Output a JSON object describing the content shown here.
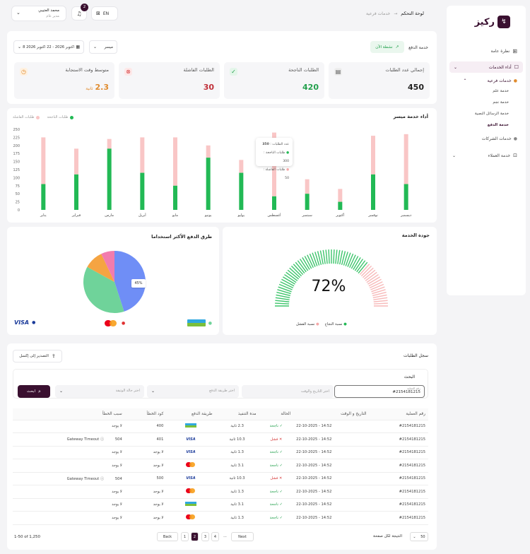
{
  "header": {
    "brand": "ركيز",
    "breadcrumb_current": "لوحة التحكم",
    "breadcrumb_sub": "خدمات فرعية",
    "lang": "EN",
    "notif_count": "2",
    "user_name": "محمد العتيبي",
    "user_role": "مدير عام"
  },
  "sidebar": {
    "items": [
      {
        "label": "نظرة عامة"
      },
      {
        "label": "أداء الخدمات"
      },
      {
        "label": "خدمات فرعية"
      },
      {
        "label": "خدمة علم"
      },
      {
        "label": "خدمة نجم"
      },
      {
        "label": "خدمة الرسائل النصية"
      },
      {
        "label": "خدمة الدفع"
      },
      {
        "label": "خدمات الشركات"
      },
      {
        "label": "خدمة العملاء"
      }
    ]
  },
  "filters": {
    "service_label": "خدمة الدفع",
    "status_badge": "نشطة الآن",
    "provider": "ميسر",
    "date_range": "8 اكتوبر 2026 - 22 اكتوبر 2026"
  },
  "stats": [
    {
      "label": "إجمالي عدد الطلبات",
      "value": "450"
    },
    {
      "label": "الطلبات الناجحة",
      "value": "420"
    },
    {
      "label": "الطلبات الفاشلة",
      "value": "30"
    },
    {
      "label": "متوسط وقت الاستجابة",
      "value": "2.3",
      "unit": "ثانية"
    }
  ],
  "bar_chart": {
    "title": "أداء خدمة ميسر",
    "legend_success": "طلبات الناجحة",
    "legend_failed": "طلبات الفاشلة",
    "tooltip": {
      "total_label": "عدد الطلبات",
      "total": "350",
      "success_label": "طلبات الناجحة",
      "success": "300",
      "failed_label": "طلبات الفاشلة",
      "failed": "50"
    }
  },
  "chart_data": [
    {
      "type": "bar",
      "title": "أداء خدمة ميسر",
      "categories": [
        "يناير",
        "فبراير",
        "مارس",
        "أبريل",
        "مايو",
        "يونيو",
        "يوليو",
        "أغسطس",
        "سبتمبر",
        "أكتوبر",
        "نوفمبر",
        "ديسمبر"
      ],
      "yticks": [
        0,
        25,
        50,
        75,
        100,
        125,
        150,
        175,
        200,
        225,
        250
      ],
      "ylim": [
        0,
        250
      ],
      "series": [
        {
          "name": "طلبات الناجحة",
          "values": [
            80,
            110,
            190,
            115,
            75,
            162,
            115,
            42,
            50,
            25,
            110,
            80
          ],
          "color": "#22b955"
        },
        {
          "name": "طلبات الفاشلة",
          "values": [
            145,
            80,
            30,
            110,
            150,
            38,
            40,
            198,
            45,
            40,
            120,
            155
          ],
          "color": "#f9c6c6"
        }
      ]
    },
    {
      "type": "pie",
      "title": "طرق الدفع الأكثر استخداما",
      "values": [
        45,
        38,
        10,
        7
      ],
      "colors": [
        "#6f8ef6",
        "#6fd39a",
        "#f5a442",
        "#f27cae"
      ],
      "label": "45%"
    },
    {
      "type": "gauge",
      "title": "جودة الخدمة",
      "value": 72,
      "label": "72%",
      "legend": [
        "نسبة النجاح",
        "نسبة الفشل"
      ]
    }
  ],
  "payment_legend": [
    "mada",
    "MasterCard",
    "VISA"
  ],
  "log": {
    "title": "سجل الطلبات",
    "export": "التصدير إلى إكسل",
    "search_title": "البحث",
    "search_label": "رقم العملية",
    "search_value": "#2154181215",
    "date_ph": "اختر التاريخ والوقت",
    "method_ph": "اختر طريقة الدفع",
    "status_ph": "اختر حالة الوثيقة",
    "search_btn": "ابحث",
    "columns": [
      "رقم العملية",
      "التاريخ و الوقت",
      "الحالة",
      "مدة التنفيذ",
      "طريقة الدفع",
      "كود الخطأ",
      "سبب الخطأ"
    ],
    "rows": [
      {
        "id": "#2154181215",
        "dt": "22-10-2025  -  14:52",
        "status": "ناجحة",
        "ok": true,
        "dur": "2.3 ثانية",
        "pay": "mada",
        "code": "400",
        "reason": "لا يوجد"
      },
      {
        "id": "#2154181215",
        "dt": "22-10-2025  -  14:52",
        "status": "فشل",
        "ok": false,
        "dur": "10.3 ثانية",
        "pay": "VISA",
        "code": "401",
        "reason": "504 Gateway Timeout"
      },
      {
        "id": "#2154181215",
        "dt": "22-10-2025  -  14:52",
        "status": "ناجحة",
        "ok": true,
        "dur": "1.3 ثانية",
        "pay": "VISA",
        "code": "لا يوجد",
        "reason": "لا يوجد"
      },
      {
        "id": "#2154181215",
        "dt": "22-10-2025  -  14:52",
        "status": "ناجحة",
        "ok": true,
        "dur": "3.1 ثانية",
        "pay": "MasterCard",
        "code": "لا يوجد",
        "reason": "لا يوجد"
      },
      {
        "id": "#2154181215",
        "dt": "22-10-2025  -  14:52",
        "status": "فشل",
        "ok": false,
        "dur": "10.3 ثانية",
        "pay": "VISA",
        "code": "500",
        "reason": "504 Gateway Timeout"
      },
      {
        "id": "#2154181215",
        "dt": "22-10-2025  -  14:52",
        "status": "ناجحة",
        "ok": true,
        "dur": "1.3 ثانية",
        "pay": "MasterCard",
        "code": "لا يوجد",
        "reason": "لا يوجد"
      },
      {
        "id": "#2154181215",
        "dt": "22-10-2025  -  14:52",
        "status": "ناجحة",
        "ok": true,
        "dur": "3.1 ثانية",
        "pay": "mada",
        "code": "لا يوجد",
        "reason": "لا يوجد"
      },
      {
        "id": "#2154181215",
        "dt": "22-10-2025  -  14:52",
        "status": "ناجحة",
        "ok": true,
        "dur": "1.3 ثانية",
        "pay": "MasterCard",
        "code": "لا يوجد",
        "reason": "لا يوجد"
      }
    ],
    "pagination": {
      "range": "1-50 of 1,250",
      "back": "Back",
      "next": "Next",
      "pages": [
        "1",
        "2",
        "3",
        "4",
        "..."
      ],
      "per_page": "50",
      "per_page_label": "النتيجة لكل صفحة"
    }
  },
  "colors": {
    "brand": "#3a1030",
    "success": "#22b955",
    "fail": "#f9c6c6"
  }
}
